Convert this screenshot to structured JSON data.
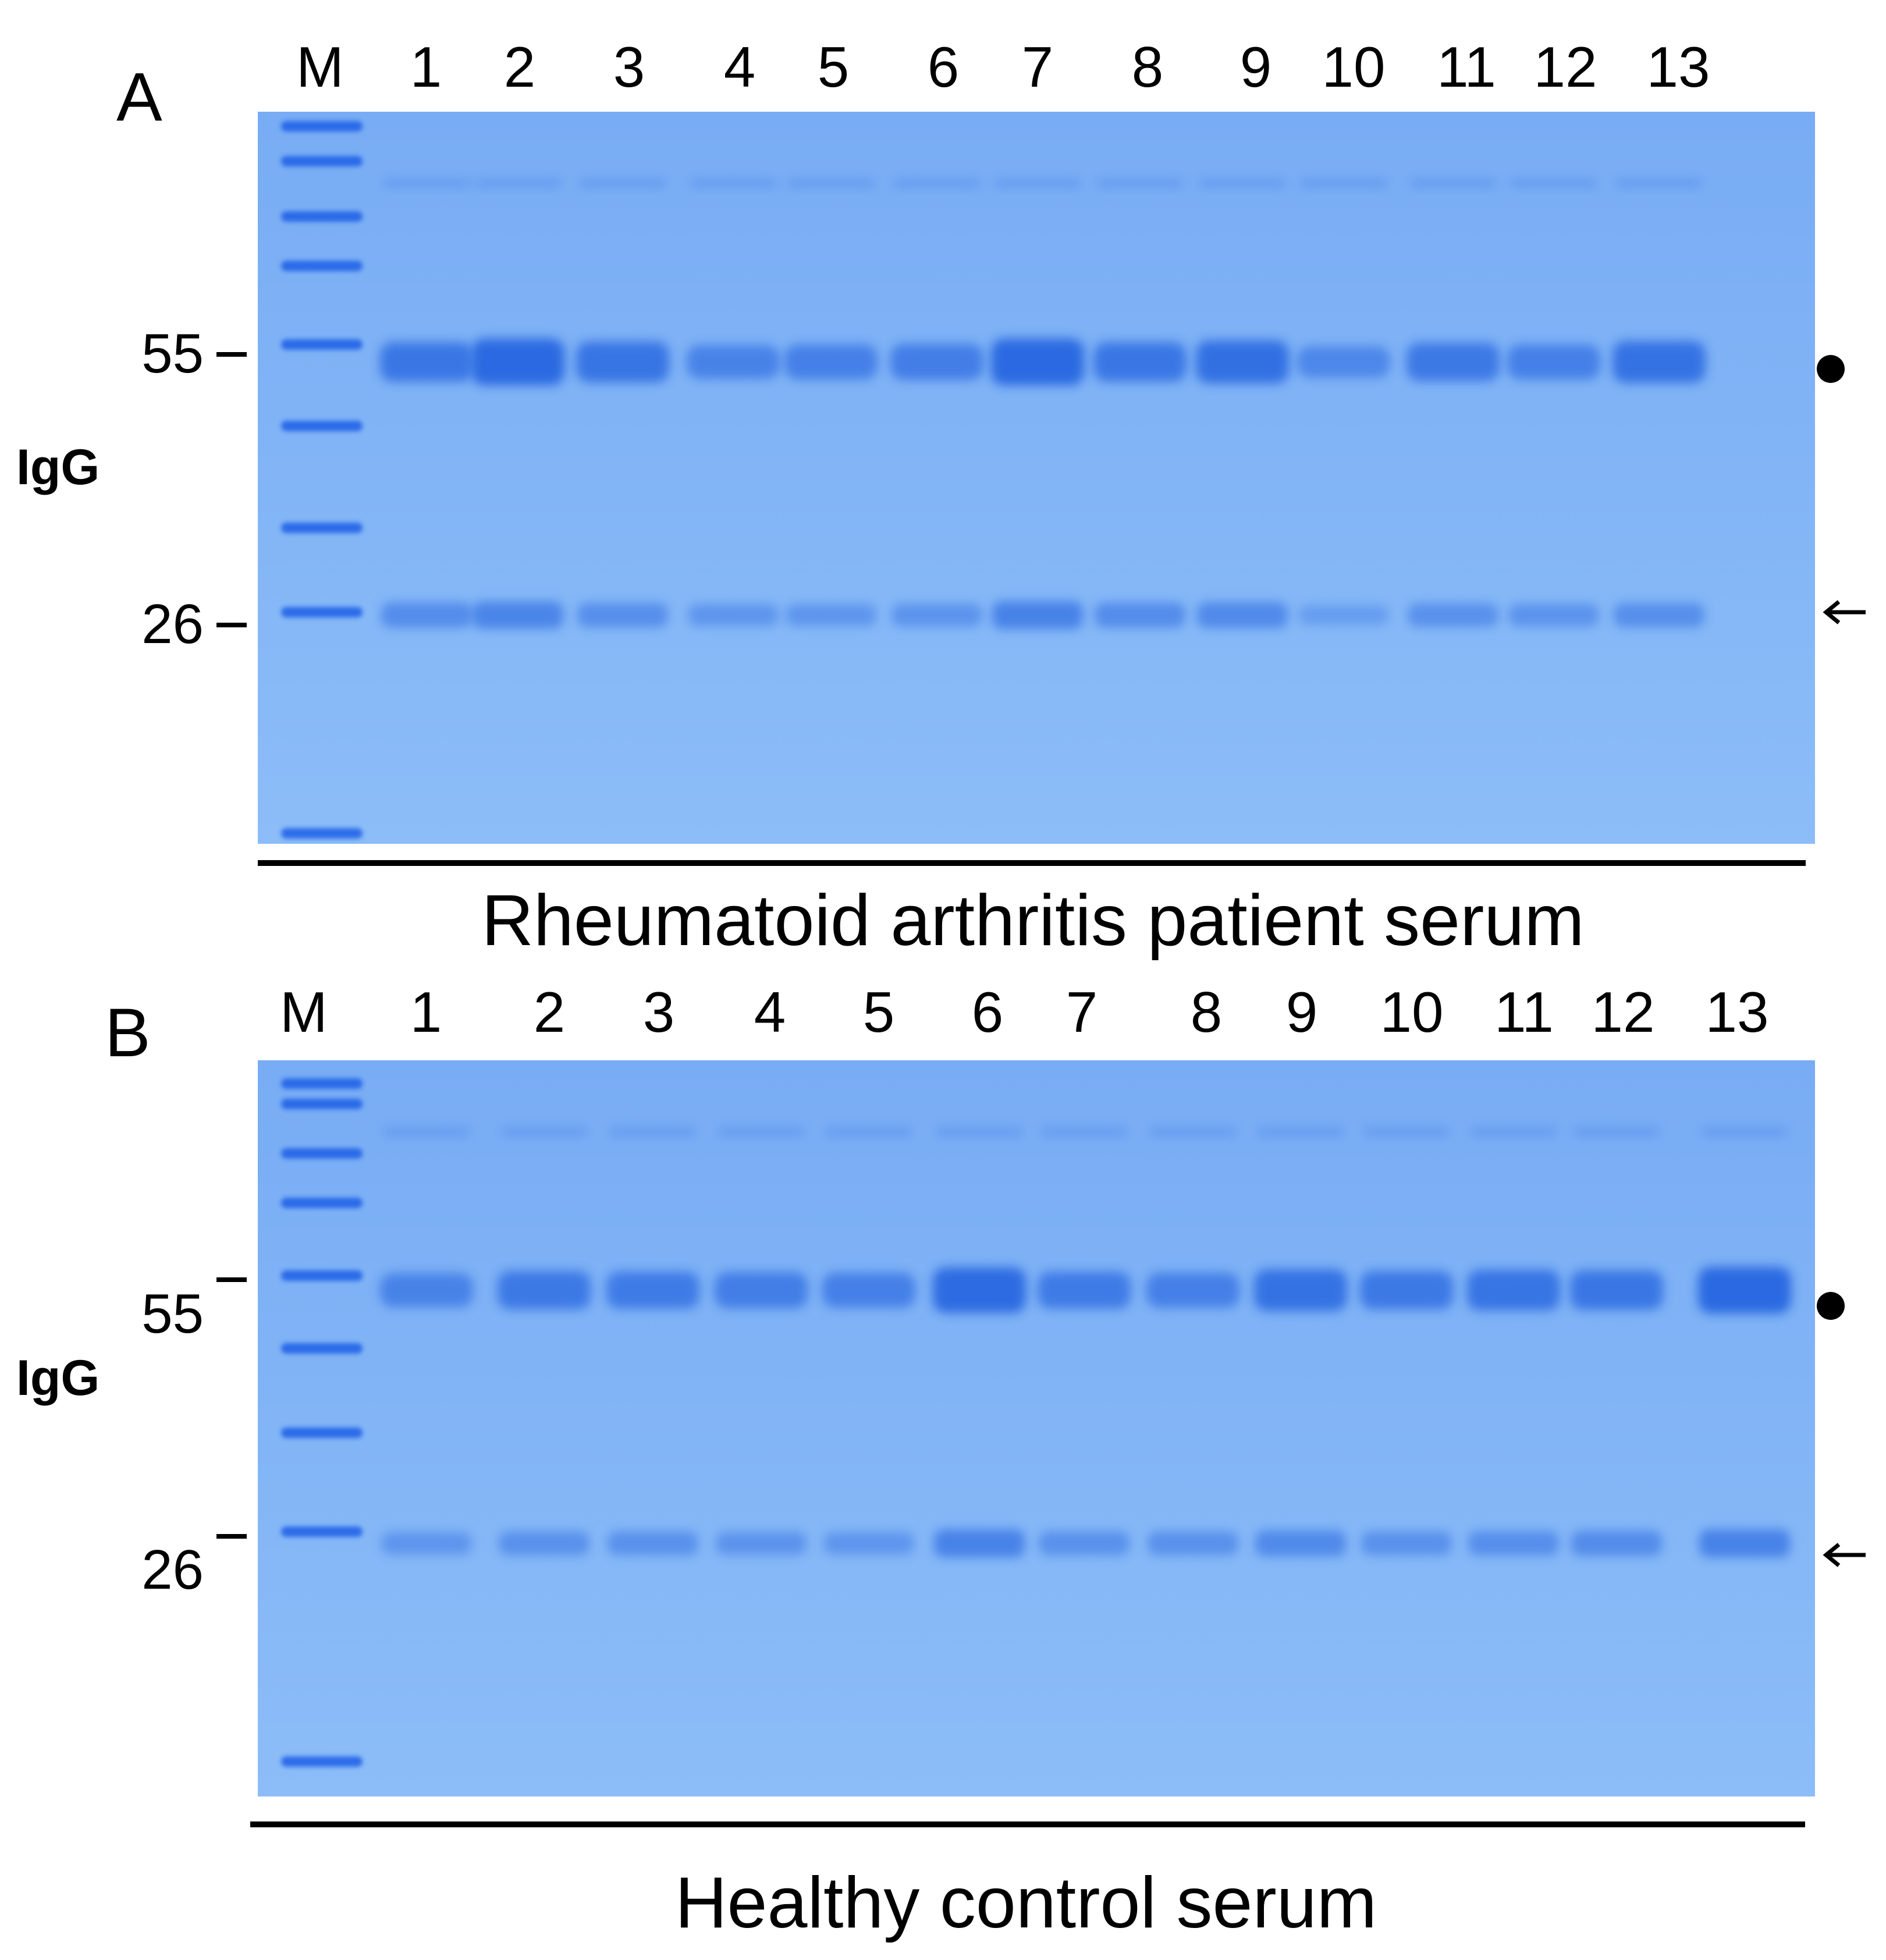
{
  "panels": [
    {
      "letter": "A",
      "lane_labels": [
        "M",
        "1",
        "2",
        "3",
        "4",
        "5",
        "6",
        "7",
        "8",
        "9",
        "10",
        "11",
        "12",
        "13"
      ],
      "mw_markers": [
        "55",
        "26"
      ],
      "side_label": "IgG",
      "caption": "Rheumatoid arthritis patient serum",
      "heavy_chain_marker": "dot",
      "light_chain_marker": "arrow",
      "heavy_chain_intensity": [
        0.7,
        1.0,
        0.75,
        0.45,
        0.5,
        0.55,
        1.0,
        0.7,
        0.85,
        0.35,
        0.65,
        0.5,
        0.8
      ],
      "light_chain_intensity": [
        0.55,
        0.7,
        0.5,
        0.35,
        0.35,
        0.4,
        0.75,
        0.55,
        0.6,
        0.2,
        0.45,
        0.4,
        0.5
      ]
    },
    {
      "letter": "B",
      "lane_labels": [
        "M",
        "1",
        "2",
        "3",
        "4",
        "5",
        "6",
        "7",
        "8",
        "9",
        "10",
        "11",
        "12",
        "13"
      ],
      "mw_markers": [
        "55",
        "26"
      ],
      "side_label": "IgG",
      "caption": "Healthy control serum",
      "heavy_chain_marker": "dot",
      "light_chain_marker": "arrow",
      "heavy_chain_intensity": [
        0.45,
        0.65,
        0.6,
        0.55,
        0.5,
        0.95,
        0.6,
        0.5,
        0.8,
        0.65,
        0.75,
        0.7,
        1.0
      ],
      "light_chain_intensity": [
        0.35,
        0.45,
        0.45,
        0.4,
        0.35,
        0.75,
        0.45,
        0.45,
        0.6,
        0.45,
        0.5,
        0.55,
        0.75
      ]
    }
  ],
  "colors": {
    "gel_background": "#7fb2f5",
    "band": "#2566e0",
    "ladder_band": "#1f5fe6"
  }
}
